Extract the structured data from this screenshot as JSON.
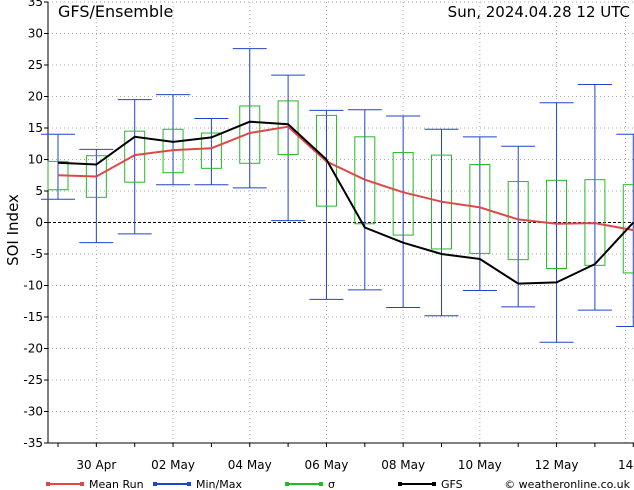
{
  "header": {
    "title": "GFS/Ensemble",
    "run_time": "Sun, 2024.04.28  12 UTC"
  },
  "footer": {
    "credit": "© weatheronline.co.uk"
  },
  "chart_data": {
    "type": "line",
    "ylabel": "SOI Index",
    "ylim": [
      -35,
      35
    ],
    "yticks": [
      -35,
      -30,
      -25,
      -20,
      -15,
      -10,
      -5,
      0,
      5,
      10,
      15,
      20,
      25,
      30,
      35
    ],
    "xlim": [
      0,
      14.7
    ],
    "x_ticks": [
      {
        "x": 1,
        "label": "30 Apr"
      },
      {
        "x": 3,
        "label": "02 May"
      },
      {
        "x": 5,
        "label": "04 May"
      },
      {
        "x": 7,
        "label": "06 May"
      },
      {
        "x": 9,
        "label": "08 May"
      },
      {
        "x": 11,
        "label": "10 May"
      },
      {
        "x": 13,
        "label": "12 May"
      },
      {
        "x": 14.8,
        "label": "14"
      }
    ],
    "x": [
      0,
      1,
      2,
      3,
      4,
      5,
      6,
      7,
      8,
      9,
      10,
      11,
      12,
      13,
      14,
      15
    ],
    "mean_run": [
      7.5,
      7.3,
      10.7,
      11.5,
      11.8,
      14.2,
      15.2,
      9.7,
      6.8,
      4.8,
      3.3,
      2.4,
      0.5,
      -0.2,
      -0.1,
      -1.2
    ],
    "gfs": [
      9.5,
      9.2,
      13.6,
      12.8,
      13.5,
      16.0,
      15.6,
      10.0,
      -0.8,
      -3.2,
      -5.0,
      -5.8,
      -9.7,
      -9.5,
      -6.6,
      0.0
    ],
    "minmax": [
      {
        "x": 0,
        "min": 3.7,
        "max": 14.0
      },
      {
        "x": 1,
        "min": -3.2,
        "max": 11.6
      },
      {
        "x": 2,
        "min": -1.8,
        "max": 19.5
      },
      {
        "x": 3,
        "min": 6.0,
        "max": 20.3
      },
      {
        "x": 4,
        "min": 6.0,
        "max": 16.5
      },
      {
        "x": 5,
        "min": 5.5,
        "max": 27.6
      },
      {
        "x": 6,
        "min": 0.3,
        "max": 23.4
      },
      {
        "x": 7,
        "min": -12.2,
        "max": 17.8
      },
      {
        "x": 8,
        "min": -10.7,
        "max": 17.9
      },
      {
        "x": 9,
        "min": -13.5,
        "max": 16.9
      },
      {
        "x": 10,
        "min": -14.8,
        "max": 14.8
      },
      {
        "x": 11,
        "min": -10.8,
        "max": 13.6
      },
      {
        "x": 12,
        "min": -13.4,
        "max": 12.1
      },
      {
        "x": 13,
        "min": -19.0,
        "max": 19.0
      },
      {
        "x": 14,
        "min": -13.9,
        "max": 21.9
      },
      {
        "x": 15,
        "min": -16.5,
        "max": 14.0
      }
    ],
    "sigma": [
      {
        "x": 0,
        "low": 5.2,
        "high": 9.7
      },
      {
        "x": 1,
        "low": 4.0,
        "high": 10.6
      },
      {
        "x": 2,
        "low": 6.4,
        "high": 14.5
      },
      {
        "x": 3,
        "low": 7.9,
        "high": 14.8
      },
      {
        "x": 4,
        "low": 8.6,
        "high": 14.2
      },
      {
        "x": 5,
        "low": 9.4,
        "high": 18.5
      },
      {
        "x": 6,
        "low": 10.8,
        "high": 19.3
      },
      {
        "x": 7,
        "low": 2.6,
        "high": 17.0
      },
      {
        "x": 8,
        "low": -0.2,
        "high": 13.6
      },
      {
        "x": 9,
        "low": -2.0,
        "high": 11.1
      },
      {
        "x": 10,
        "low": -4.2,
        "high": 10.7
      },
      {
        "x": 11,
        "low": -4.9,
        "high": 9.2
      },
      {
        "x": 12,
        "low": -5.9,
        "high": 6.5
      },
      {
        "x": 13,
        "low": -7.3,
        "high": 6.7
      },
      {
        "x": 14,
        "low": -6.8,
        "high": 6.8
      },
      {
        "x": 15,
        "low": -8.0,
        "high": 6.0
      }
    ],
    "legend": [
      {
        "key": "mean_run",
        "label": "Mean Run",
        "color": "#e04848"
      },
      {
        "key": "minmax",
        "label": "Min/Max",
        "color": "#2244cc"
      },
      {
        "key": "sigma",
        "label": "σ",
        "color": "#22bb22"
      },
      {
        "key": "gfs",
        "label": "GFS",
        "color": "#000000"
      }
    ],
    "grid": true,
    "legend_position": "bottom"
  }
}
